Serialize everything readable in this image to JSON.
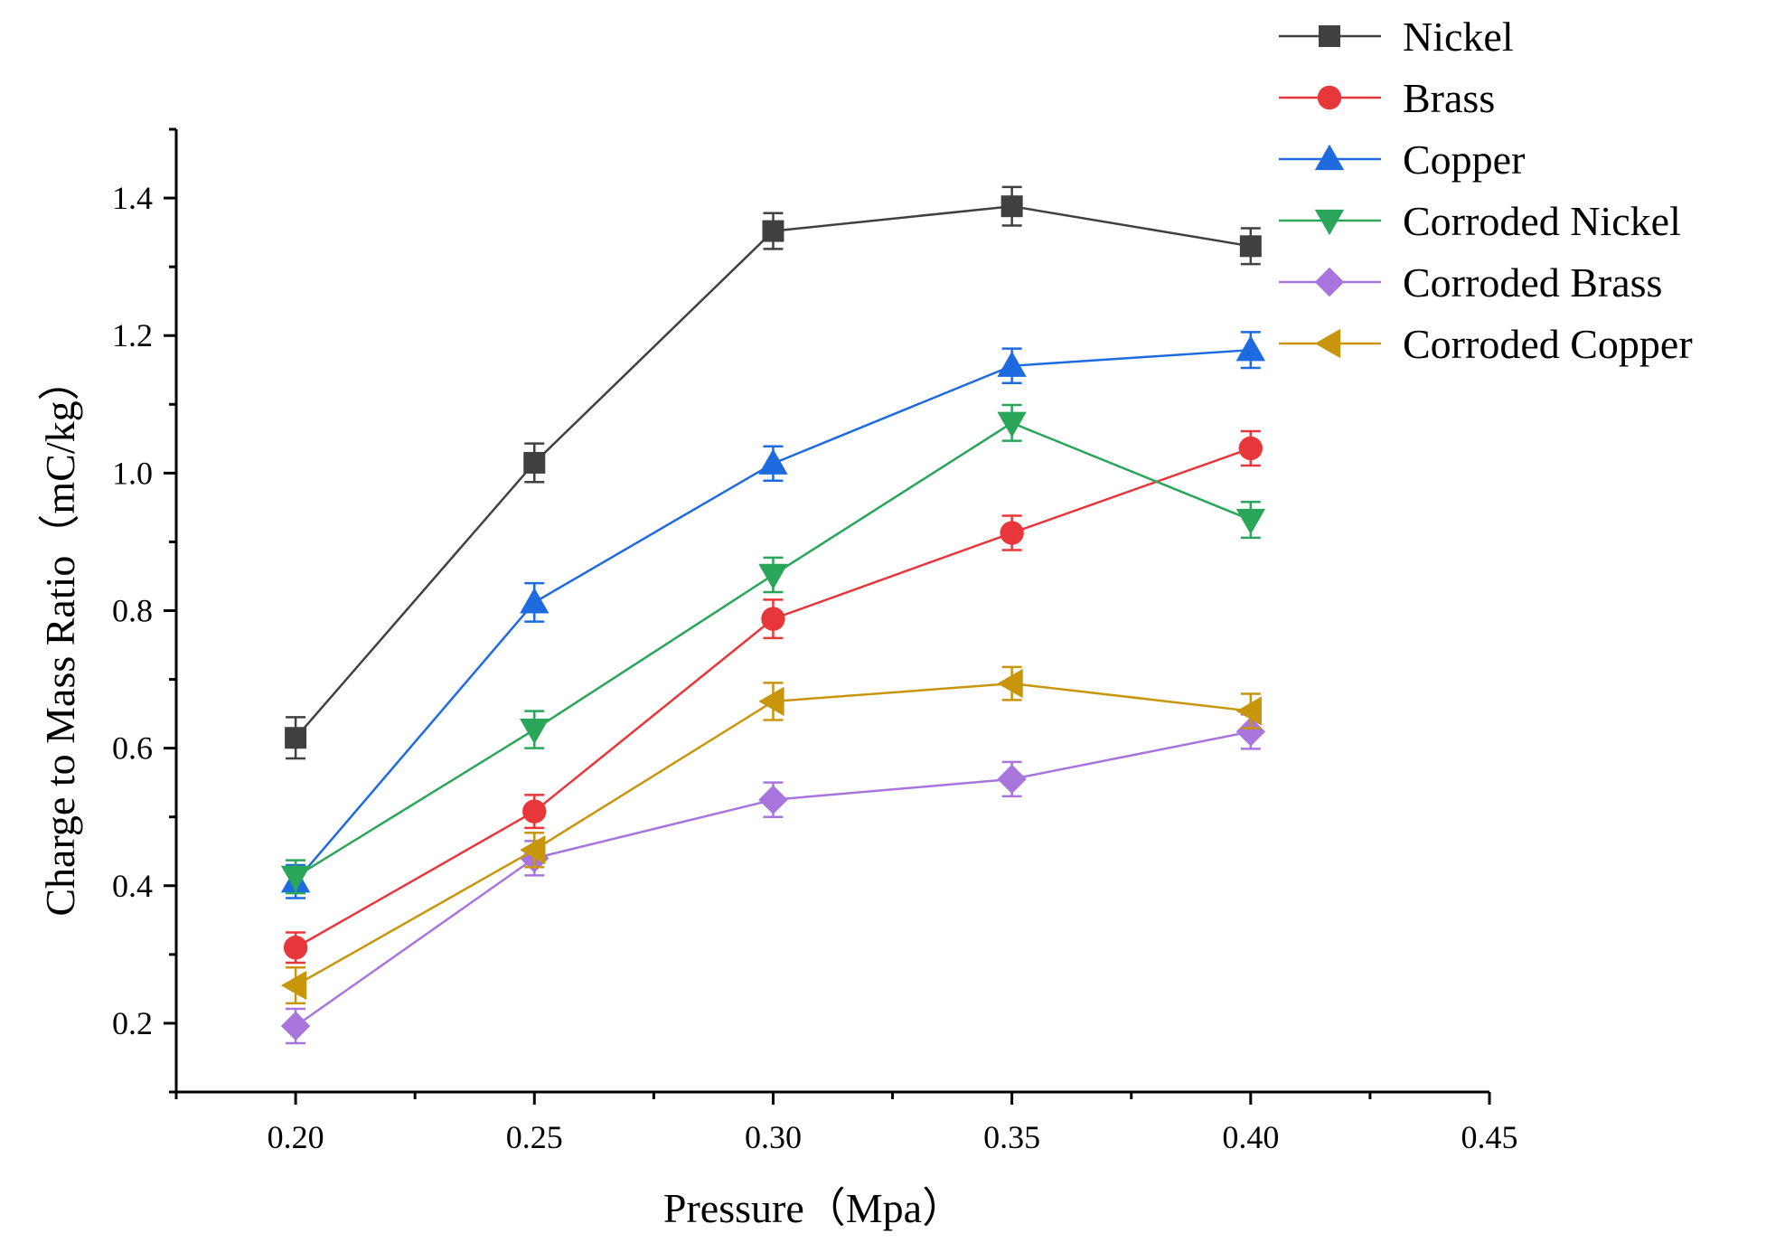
{
  "chart_data": {
    "type": "line",
    "title": "",
    "xlabel": "Pressure（Mpa）",
    "ylabel": "Charge to Mass Ratio（mC/kg）",
    "xlim": [
      0.175,
      0.45
    ],
    "ylim": [
      0.1,
      1.5
    ],
    "x": [
      0.2,
      0.25,
      0.3,
      0.35,
      0.4
    ],
    "x_ticks": [
      "0.20",
      "0.25",
      "0.30",
      "0.35",
      "0.40",
      "0.45"
    ],
    "y_ticks": [
      "0.2",
      "0.4",
      "0.6",
      "0.8",
      "1.0",
      "1.2",
      "1.4"
    ],
    "grid": false,
    "legend_position": "top-right",
    "series": [
      {
        "name": "Nickel",
        "color": "#404040",
        "marker": "square",
        "values": [
          0.615,
          1.015,
          1.352,
          1.388,
          1.33
        ],
        "errors": [
          0.03,
          0.028,
          0.026,
          0.028,
          0.026
        ]
      },
      {
        "name": "Brass",
        "color": "#e8373a",
        "marker": "circle",
        "values": [
          0.31,
          0.508,
          0.788,
          0.913,
          1.036
        ],
        "errors": [
          0.022,
          0.024,
          0.028,
          0.025,
          0.025
        ]
      },
      {
        "name": "Copper",
        "color": "#1e6be0",
        "marker": "triangle-up",
        "values": [
          0.406,
          0.812,
          1.014,
          1.156,
          1.179
        ],
        "errors": [
          0.024,
          0.028,
          0.025,
          0.025,
          0.026
        ]
      },
      {
        "name": "Corroded Nickel",
        "color": "#2aa65a",
        "marker": "triangle-down",
        "values": [
          0.413,
          0.627,
          0.852,
          1.073,
          0.932
        ],
        "errors": [
          0.024,
          0.027,
          0.025,
          0.026,
          0.026
        ]
      },
      {
        "name": "Corroded Brass",
        "color": "#a875dc",
        "marker": "diamond",
        "values": [
          0.196,
          0.44,
          0.525,
          0.555,
          0.624
        ],
        "errors": [
          0.025,
          0.025,
          0.025,
          0.025,
          0.025
        ]
      },
      {
        "name": "Corroded Copper",
        "color": "#c8960c",
        "marker": "triangle-left",
        "values": [
          0.255,
          0.452,
          0.668,
          0.694,
          0.654
        ],
        "errors": [
          0.026,
          0.025,
          0.027,
          0.024,
          0.025
        ]
      }
    ]
  }
}
